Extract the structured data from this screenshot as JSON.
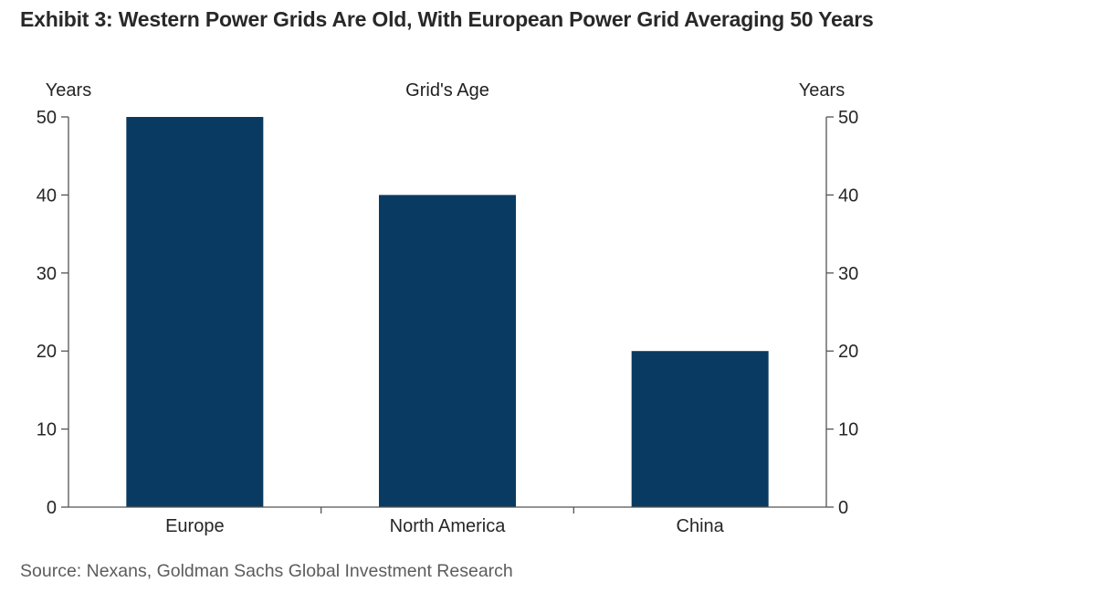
{
  "page": {
    "title": "Exhibit 3: Western Power Grids Are Old, With European Power Grid Averaging 50 Years",
    "source": "Source: Nexans, Goldman Sachs Global Investment Research"
  },
  "chart_data": {
    "type": "bar",
    "title": "Grid's Age",
    "categories": [
      "Europe",
      "North America",
      "China"
    ],
    "values": [
      50,
      40,
      20
    ],
    "ylabel_left": "Years",
    "ylabel_right": "Years",
    "ylim": [
      0,
      50
    ],
    "yticks": [
      0,
      10,
      20,
      30,
      40,
      50
    ],
    "grid": false,
    "legend_position": "none",
    "colors": {
      "bar": "#093a61",
      "axis": "#545454",
      "tick_text": "#262626",
      "chart_title_text": "#1f1f1f"
    }
  }
}
